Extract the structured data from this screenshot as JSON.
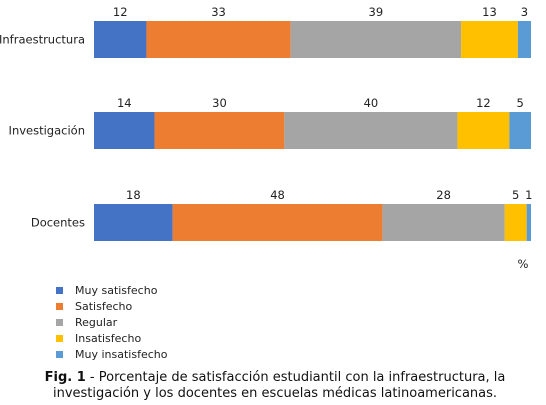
{
  "chart_data": {
    "type": "bar",
    "orientation": "horizontal",
    "stacked": true,
    "unit": "%",
    "categories": [
      "Infraestructura",
      "Investigación",
      "Docentes"
    ],
    "series": [
      {
        "name": "Muy satisfecho",
        "color": "#4472C4",
        "values": [
          12,
          14,
          18
        ]
      },
      {
        "name": "Satisfecho",
        "color": "#ED7D31",
        "values": [
          33,
          30,
          48
        ]
      },
      {
        "name": "Regular",
        "color": "#A5A5A5",
        "values": [
          39,
          40,
          28
        ]
      },
      {
        "name": "Insatisfecho",
        "color": "#FFC000",
        "values": [
          13,
          12,
          5
        ]
      },
      {
        "name": "Muy insatisfecho",
        "color": "#5B9BD5",
        "values": [
          3,
          5,
          1
        ]
      }
    ],
    "legend_position": "bottom-left",
    "grid": false
  },
  "caption": {
    "prefix": "Fig. 1",
    "text": " - Porcentaje de satisfacción estudiantil con la infraestructura, la investigación y los docentes en escuelas médicas latinoamericanas."
  }
}
